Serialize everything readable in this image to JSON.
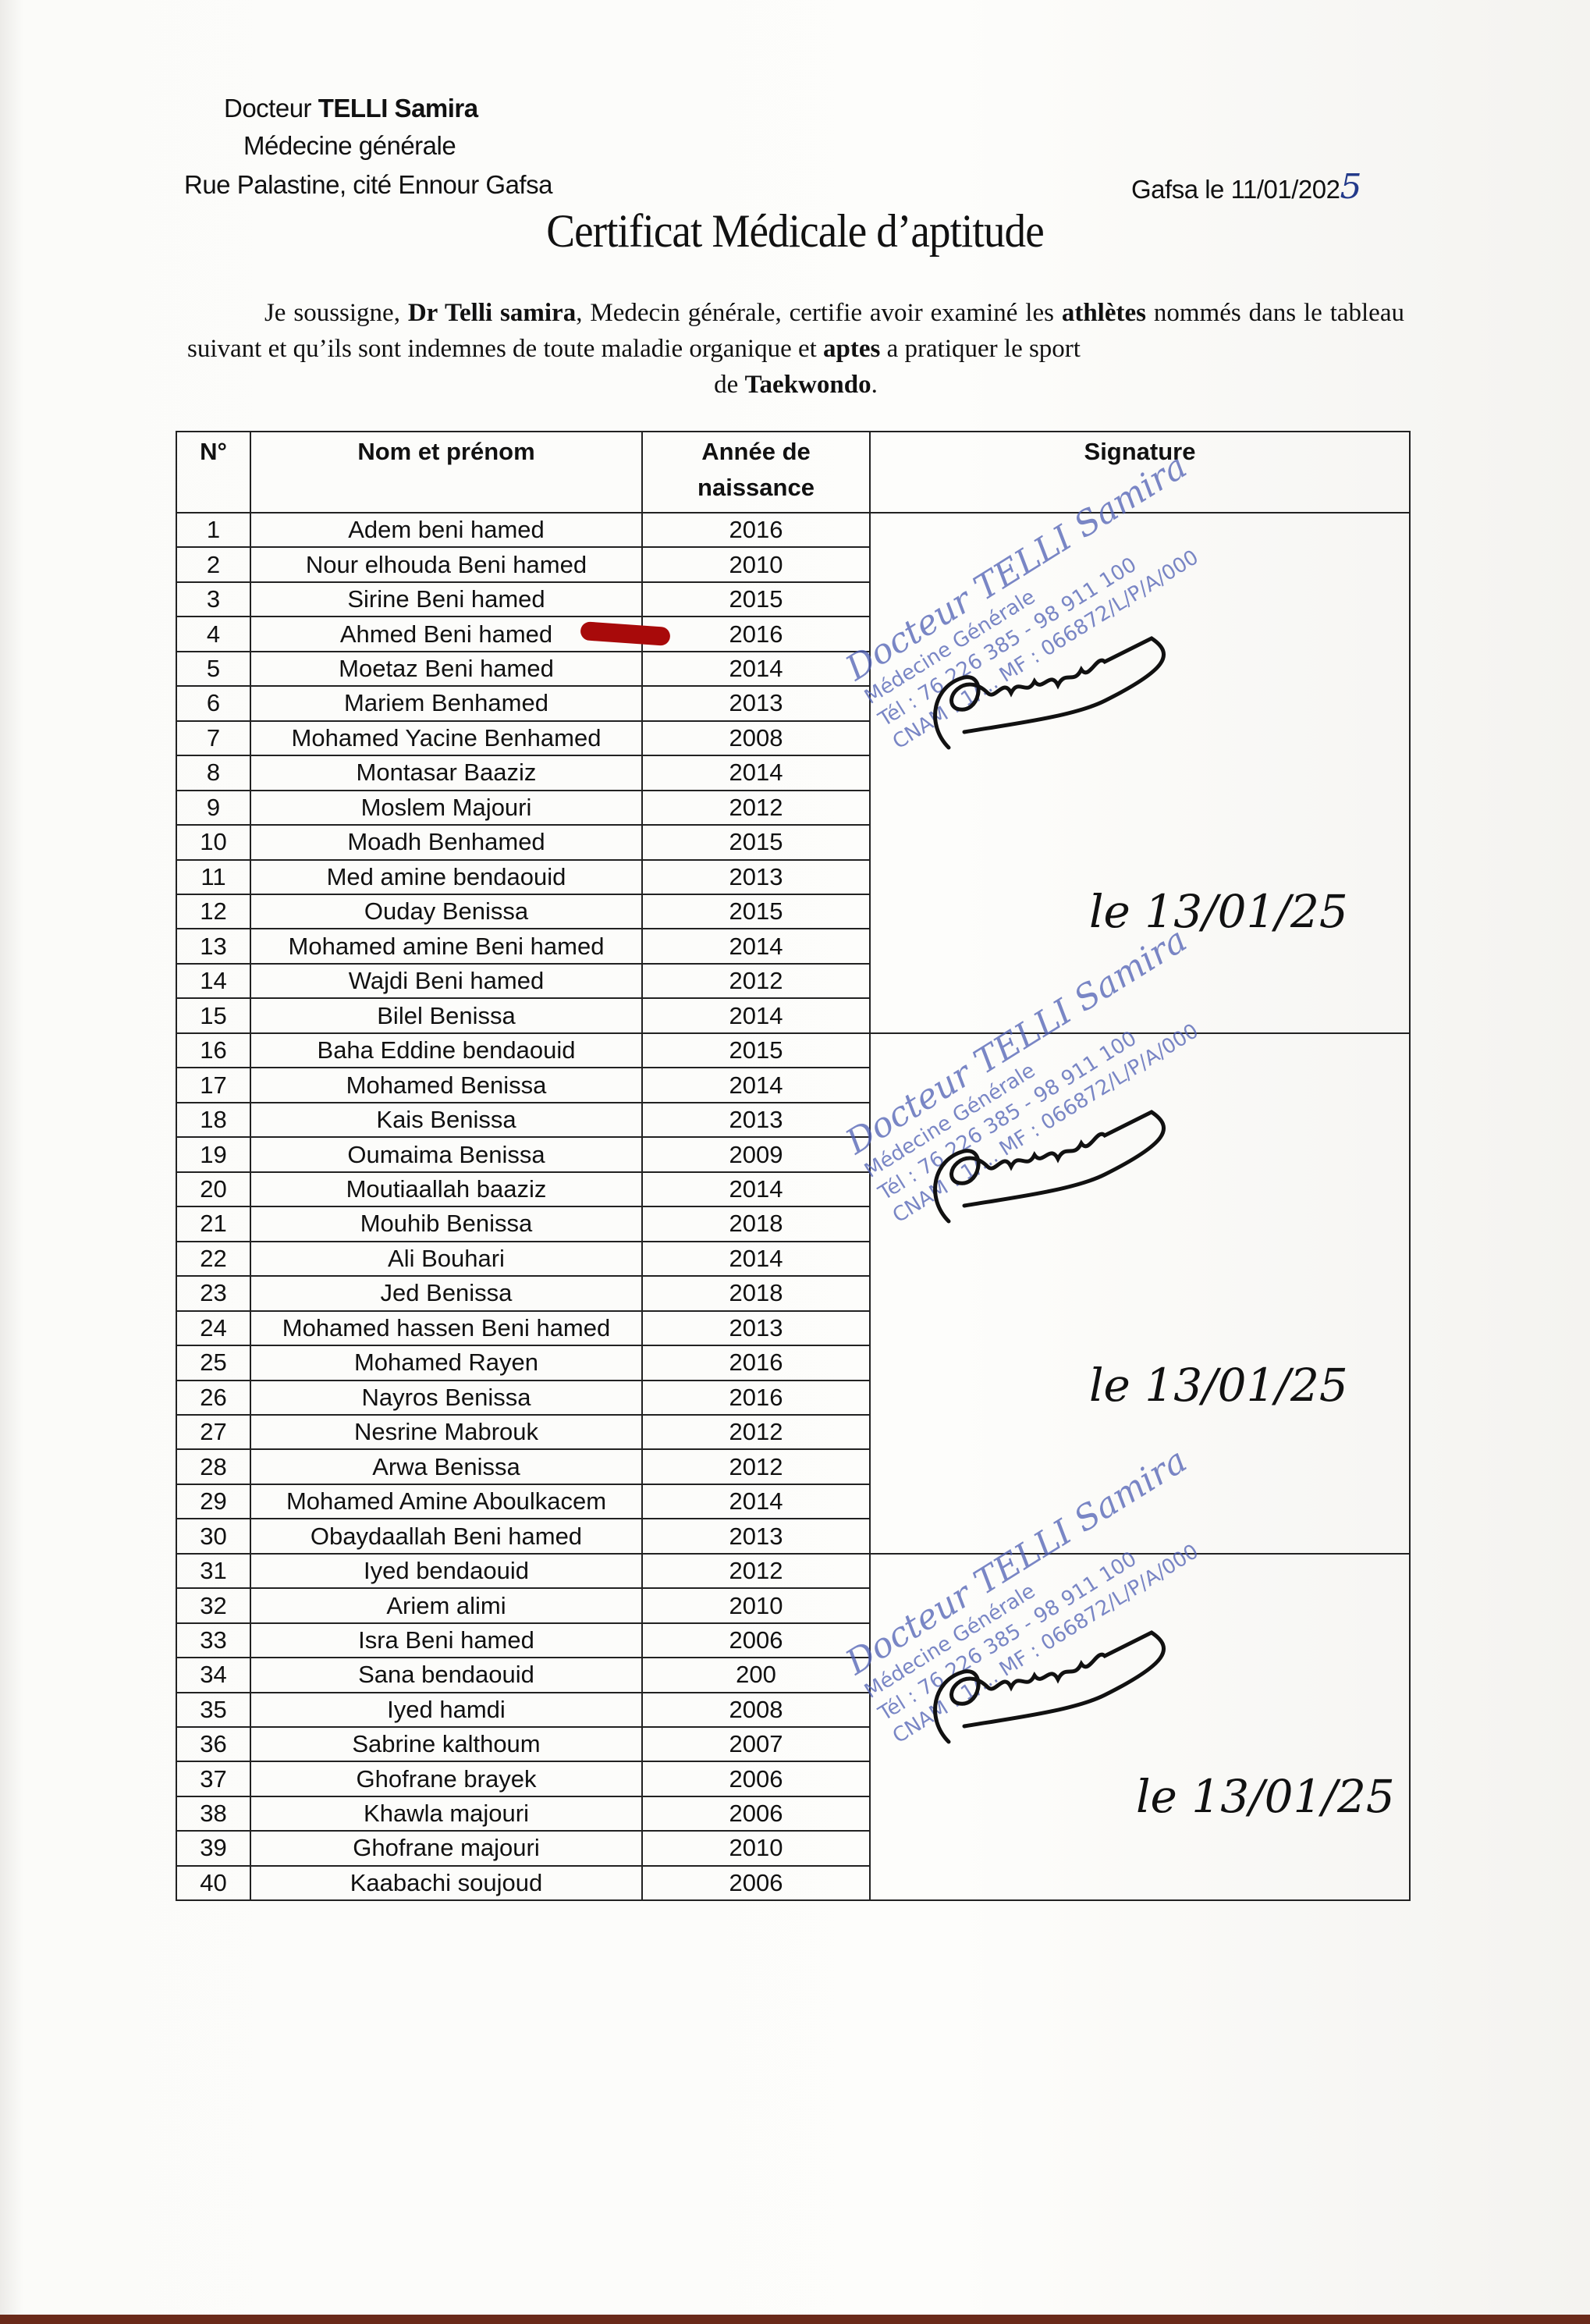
{
  "header": {
    "doctor_prefix": "Docteur",
    "doctor_name": "TELLI Samira",
    "specialty": "Médecine générale",
    "address": "Rue Palastine, cité Ennour  Gafsa",
    "date_label": "Gafsa le 11/01/202",
    "date_handwritten_digit": "5"
  },
  "title": "Certificat Médicale d’aptitude",
  "paragraph": {
    "p1": "Je soussigne, ",
    "p2": "Dr Telli samira",
    "p3": ", Medecin générale, certifie avoir examiné les ",
    "p4": "athlètes",
    "p5": "  nommés dans le tableau suivant et qu’ils sont indemnes de toute maladie organique et ",
    "p6": "aptes",
    "p7": " a pratiquer le sport",
    "p8": "de ",
    "p9": "Taekwondo",
    "p10": "."
  },
  "table": {
    "headers": {
      "num": "N°",
      "name": "Nom et prénom",
      "year": "Année de naissance",
      "signature": "Signature"
    },
    "rows": [
      [
        "1",
        "Adem beni hamed",
        "2016"
      ],
      [
        "2",
        "Nour elhouda Beni hamed",
        "2010"
      ],
      [
        "3",
        "Sirine Beni hamed",
        "2015"
      ],
      [
        "4",
        "Ahmed Beni hamed",
        "2016"
      ],
      [
        "5",
        "Moetaz Beni hamed",
        "2014"
      ],
      [
        "6",
        "Mariem Benhamed",
        "2013"
      ],
      [
        "7",
        "Mohamed Yacine Benhamed",
        "2008"
      ],
      [
        "8",
        "Montasar Baaziz",
        "2014"
      ],
      [
        "9",
        "Moslem Majouri",
        "2012"
      ],
      [
        "10",
        "Moadh Benhamed",
        "2015"
      ],
      [
        "11",
        "Med amine bendaouid",
        "2013"
      ],
      [
        "12",
        "Ouday Benissa",
        "2015"
      ],
      [
        "13",
        "Mohamed amine Beni hamed",
        "2014"
      ],
      [
        "14",
        "Wajdi Beni hamed",
        "2012"
      ],
      [
        "15",
        "Bilel Benissa",
        "2014"
      ],
      [
        "16",
        "Baha Eddine bendaouid",
        "2015"
      ],
      [
        "17",
        "Mohamed Benissa",
        "2014"
      ],
      [
        "18",
        "Kais Benissa",
        "2013"
      ],
      [
        "19",
        "Oumaima Benissa",
        "2009"
      ],
      [
        "20",
        "Moutiaallah baaziz",
        "2014"
      ],
      [
        "21",
        "Mouhib Benissa",
        "2018"
      ],
      [
        "22",
        "Ali Bouhari",
        "2014"
      ],
      [
        "23",
        "Jed Benissa",
        "2018"
      ],
      [
        "24",
        "Mohamed hassen Beni hamed",
        "2013"
      ],
      [
        "25",
        "Mohamed Rayen",
        "2016"
      ],
      [
        "26",
        "Nayros Benissa",
        "2016"
      ],
      [
        "27",
        "Nesrine Mabrouk",
        "2012"
      ],
      [
        "28",
        "Arwa Benissa",
        "2012"
      ],
      [
        "29",
        "Mohamed Amine Aboulkacem",
        "2014"
      ],
      [
        "30",
        "Obaydaallah Beni hamed",
        "2013"
      ],
      [
        "31",
        "Iyed bendaouid",
        "2012"
      ],
      [
        "32",
        "Ariem alimi",
        "2010"
      ],
      [
        "33",
        "Isra Beni hamed",
        "2006"
      ],
      [
        "34",
        "Sana bendaouid",
        "200"
      ],
      [
        "35",
        "Iyed hamdi",
        "2008"
      ],
      [
        "36",
        "Sabrine kalthoum",
        "2007"
      ],
      [
        "37",
        "Ghofrane brayek",
        "2006"
      ],
      [
        "38",
        "Khawla majouri",
        "2006"
      ],
      [
        "39",
        "Ghofrane majouri",
        "2010"
      ],
      [
        "40",
        "Kaabachi soujoud",
        "2006"
      ]
    ],
    "signature_groups": [
      {
        "rows": 15,
        "handwritten_date": "le 13/01/25"
      },
      {
        "rows": 15,
        "handwritten_date": "le 13/01/25"
      },
      {
        "rows": 10,
        "handwritten_date": "le 13/01/25"
      }
    ]
  },
  "stamp": {
    "line1": "Docteur TELLI Samira",
    "line2": "Médecine Générale",
    "line3": "Tél : 76 226 385 - 98 911 100",
    "line4": "CNAM : 1/... MF : 066872/L/P/A/000"
  },
  "colors": {
    "stamp_ink": "#4e5fb4",
    "highlight_mark": "#a80a0a",
    "pen_ink": "#111111",
    "date_ink": "#233a8a"
  }
}
